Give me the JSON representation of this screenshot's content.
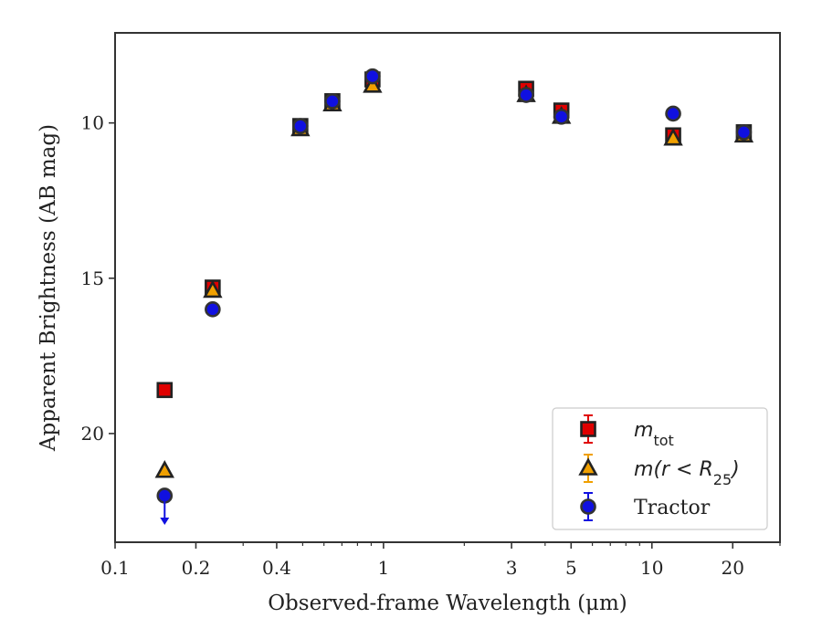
{
  "chart_data": {
    "type": "scatter",
    "xscale": "log",
    "yaxis_inverted": true,
    "xlim": [
      0.1,
      30
    ],
    "ylim": [
      23.5,
      7.1
    ],
    "xlabel": "Observed-frame Wavelength (μm)",
    "ylabel": "Apparent Brightness (AB mag)",
    "xticks": [
      {
        "value": 0.1,
        "label": "0.1"
      },
      {
        "value": 0.2,
        "label": "0.2"
      },
      {
        "value": 0.4,
        "label": "0.4"
      },
      {
        "value": 1,
        "label": "1"
      },
      {
        "value": 3,
        "label": "3"
      },
      {
        "value": 5,
        "label": "5"
      },
      {
        "value": 10,
        "label": "10"
      },
      {
        "value": 20,
        "label": "20"
      }
    ],
    "yticks": [
      {
        "value": 10,
        "label": "10"
      },
      {
        "value": 15,
        "label": "15"
      },
      {
        "value": 20,
        "label": "20"
      }
    ],
    "legend_position": "lower-right",
    "series": [
      {
        "name_italic": "m",
        "name_subscript": "tot",
        "marker": "square",
        "color": "#e00000",
        "edge_color": "#222222",
        "points": [
          {
            "x": 0.153,
            "y": 18.6
          },
          {
            "x": 0.231,
            "y": 15.3
          },
          {
            "x": 0.49,
            "y": 10.1
          },
          {
            "x": 0.645,
            "y": 9.3
          },
          {
            "x": 0.91,
            "y": 8.6
          },
          {
            "x": 3.4,
            "y": 8.9
          },
          {
            "x": 4.6,
            "y": 9.6
          },
          {
            "x": 12.0,
            "y": 10.4
          },
          {
            "x": 22.0,
            "y": 10.3
          }
        ]
      },
      {
        "name_italic": "m",
        "name_rest": "(r < R",
        "name_subscript": "25",
        "name_close": ")",
        "marker": "triangle",
        "color": "#f0a000",
        "edge_color": "#222222",
        "points": [
          {
            "x": 0.153,
            "y": 21.2
          },
          {
            "x": 0.231,
            "y": 15.4
          },
          {
            "x": 0.49,
            "y": 10.2
          },
          {
            "x": 0.645,
            "y": 9.4
          },
          {
            "x": 0.91,
            "y": 8.8
          },
          {
            "x": 3.4,
            "y": 9.1
          },
          {
            "x": 4.6,
            "y": 9.8
          },
          {
            "x": 12.0,
            "y": 10.5
          },
          {
            "x": 22.0,
            "y": 10.4
          }
        ]
      },
      {
        "name": "Tractor",
        "marker": "circle",
        "color": "#1010e0",
        "edge_color": "#333333",
        "points": [
          {
            "x": 0.153,
            "y": 22.0,
            "upper_limit": true
          },
          {
            "x": 0.231,
            "y": 16.0
          },
          {
            "x": 0.49,
            "y": 10.1
          },
          {
            "x": 0.645,
            "y": 9.3
          },
          {
            "x": 0.91,
            "y": 8.5
          },
          {
            "x": 3.4,
            "y": 9.1
          },
          {
            "x": 4.6,
            "y": 9.8
          },
          {
            "x": 12.0,
            "y": 9.7
          },
          {
            "x": 22.0,
            "y": 10.3
          }
        ]
      }
    ]
  }
}
